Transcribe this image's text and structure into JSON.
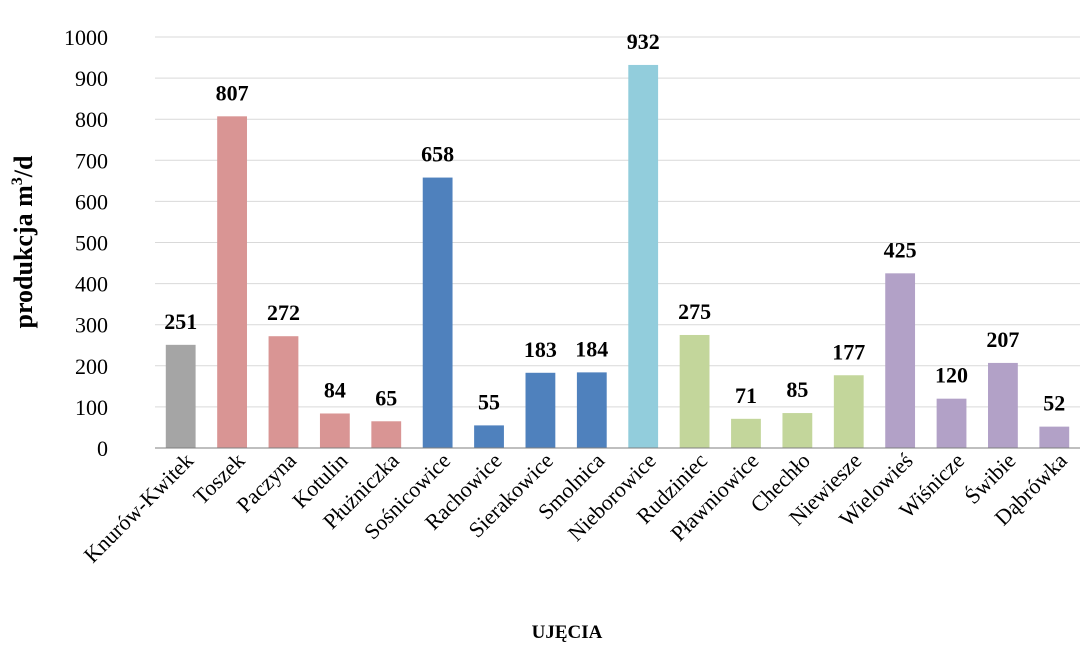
{
  "chart_data": {
    "type": "bar",
    "xlabel": "UJĘCIA",
    "ylabel_main": "produkcja m",
    "ylabel_sup": "3",
    "ylabel_tail": "/d",
    "ylim": [
      0,
      1000
    ],
    "yticks": [
      "0",
      "100",
      "200",
      "300",
      "400",
      "500",
      "600",
      "700",
      "800",
      "900",
      "1000"
    ],
    "grid": true,
    "categories": [
      "Knurów-Kwitek",
      "Toszek",
      "Paczyna",
      "Kotulin",
      "Płużniczka",
      "Sośnicowice",
      "Rachowice",
      "Sierakowice",
      "Smolnica",
      "Nieborowice",
      "Rudziniec",
      "Pławniowice",
      "Chechło",
      "Niewiesze",
      "Wielowieś",
      "Wiśnicze",
      "Świbie",
      "Dąbrówka"
    ],
    "values": [
      251,
      807,
      272,
      84,
      65,
      658,
      55,
      183,
      184,
      932,
      275,
      71,
      85,
      177,
      425,
      120,
      207,
      52
    ],
    "value_labels": [
      "251",
      "807",
      "272",
      "84",
      "65",
      "658",
      "55",
      "183",
      "184",
      "932",
      "275",
      "71",
      "85",
      "177",
      "425",
      "120",
      "207",
      "52"
    ],
    "colors": [
      "#a5a5a5",
      "#d99594",
      "#d99594",
      "#d99594",
      "#d99594",
      "#4f81bd",
      "#4f81bd",
      "#4f81bd",
      "#4f81bd",
      "#92cddc",
      "#c3d69b",
      "#c3d69b",
      "#c3d69b",
      "#c3d69b",
      "#b2a1c7",
      "#b2a1c7",
      "#b2a1c7",
      "#b2a1c7"
    ]
  }
}
